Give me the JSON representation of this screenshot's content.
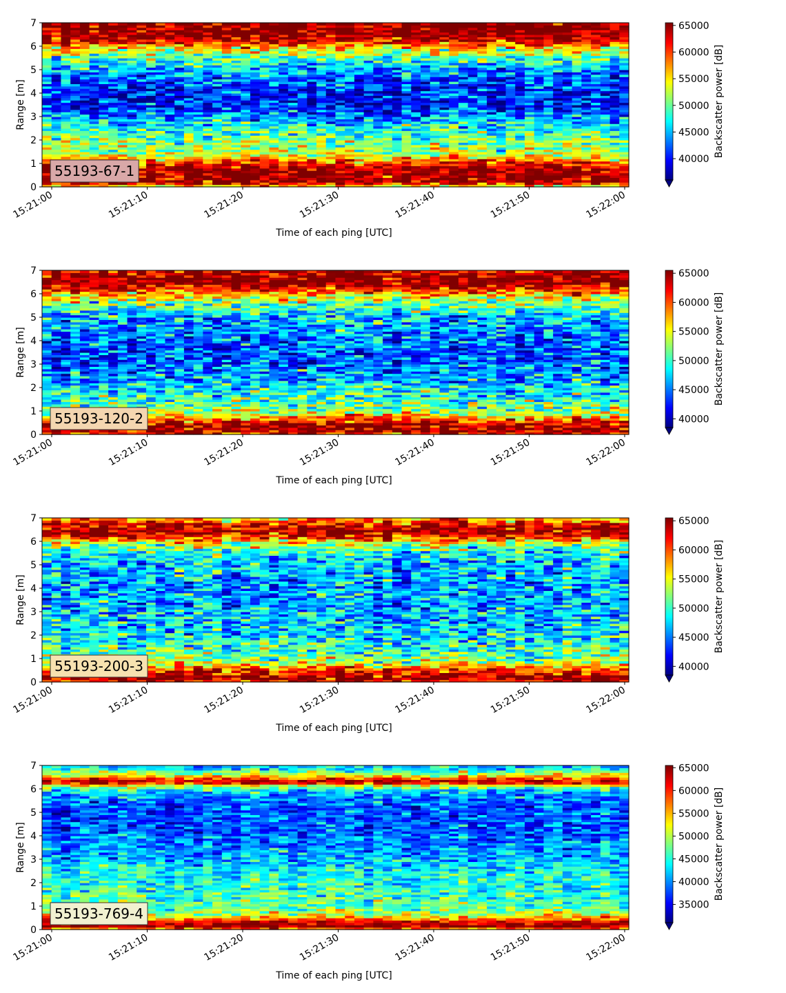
{
  "figure": {
    "xlabel": "Time of each ping [UTC]",
    "ylabel": "Range [m]",
    "cbar_label": "Backscatter power [dB]",
    "x_ticks": [
      "15:21:00",
      "15:21:10",
      "15:21:20",
      "15:21:30",
      "15:21:40",
      "15:21:50",
      "15:22:00"
    ],
    "y_ticks": [
      "0",
      "1",
      "2",
      "3",
      "4",
      "5",
      "6",
      "7"
    ]
  },
  "chart_data": [
    {
      "type": "heatmap",
      "label": "55193-67-1",
      "label_color": "#d9a8a8",
      "x_range": [
        "15:21:00",
        "15:22:00"
      ],
      "ylim": [
        0,
        7
      ],
      "colormap": "jet",
      "colorbar_range": [
        36000,
        65500
      ],
      "colorbar_ticks": [
        40000,
        45000,
        50000,
        55000,
        60000,
        65000
      ],
      "colorbar_ticks_text": [
        "40000",
        "45000",
        "50000",
        "55000",
        "60000",
        "65000"
      ],
      "profile": [
        {
          "r": 0.0,
          "v": 52000
        },
        {
          "r": 0.2,
          "v": 65500
        },
        {
          "r": 0.8,
          "v": 64500
        },
        {
          "r": 1.15,
          "v": 58000
        },
        {
          "r": 1.5,
          "v": 52000
        },
        {
          "r": 2.0,
          "v": 51000
        },
        {
          "r": 2.5,
          "v": 48000
        },
        {
          "r": 3.0,
          "v": 44000
        },
        {
          "r": 3.5,
          "v": 40000
        },
        {
          "r": 4.0,
          "v": 41000
        },
        {
          "r": 4.5,
          "v": 42000
        },
        {
          "r": 5.0,
          "v": 45000
        },
        {
          "r": 5.5,
          "v": 49000
        },
        {
          "r": 5.9,
          "v": 55000
        },
        {
          "r": 6.2,
          "v": 62000
        },
        {
          "r": 6.5,
          "v": 65500
        },
        {
          "r": 7.0,
          "v": 65500
        }
      ],
      "noise": 4500
    },
    {
      "type": "heatmap",
      "label": "55193-120-2",
      "label_color": "#f4d6b0",
      "x_range": [
        "15:21:00",
        "15:22:00"
      ],
      "ylim": [
        0,
        7
      ],
      "colormap": "jet",
      "colorbar_range": [
        38500,
        65500
      ],
      "colorbar_ticks": [
        40000,
        45000,
        50000,
        55000,
        60000,
        65000
      ],
      "colorbar_ticks_text": [
        "40000",
        "45000",
        "50000",
        "55000",
        "60000",
        "65000"
      ],
      "profile": [
        {
          "r": 0.0,
          "v": 60000
        },
        {
          "r": 0.2,
          "v": 65500
        },
        {
          "r": 0.45,
          "v": 64000
        },
        {
          "r": 0.7,
          "v": 58000
        },
        {
          "r": 1.0,
          "v": 53000
        },
        {
          "r": 1.5,
          "v": 50000
        },
        {
          "r": 2.0,
          "v": 48000
        },
        {
          "r": 2.5,
          "v": 46000
        },
        {
          "r": 3.0,
          "v": 45000
        },
        {
          "r": 3.5,
          "v": 44000
        },
        {
          "r": 4.0,
          "v": 45000
        },
        {
          "r": 4.5,
          "v": 46000
        },
        {
          "r": 5.0,
          "v": 47000
        },
        {
          "r": 5.5,
          "v": 51000
        },
        {
          "r": 5.9,
          "v": 56000
        },
        {
          "r": 6.2,
          "v": 62000
        },
        {
          "r": 6.5,
          "v": 65500
        },
        {
          "r": 7.0,
          "v": 64000
        }
      ],
      "noise": 4500
    },
    {
      "type": "heatmap",
      "label": "55193-200-3",
      "label_color": "#f7e2b0",
      "x_range": [
        "15:21:00",
        "15:22:00"
      ],
      "ylim": [
        0,
        7
      ],
      "colormap": "jet",
      "colorbar_range": [
        38500,
        65500
      ],
      "colorbar_ticks": [
        40000,
        45000,
        50000,
        55000,
        60000,
        65000
      ],
      "colorbar_ticks_text": [
        "40000",
        "45000",
        "50000",
        "55000",
        "60000",
        "65000"
      ],
      "profile": [
        {
          "r": 0.0,
          "v": 62000
        },
        {
          "r": 0.2,
          "v": 65500
        },
        {
          "r": 0.45,
          "v": 62000
        },
        {
          "r": 0.75,
          "v": 56000
        },
        {
          "r": 1.0,
          "v": 52000
        },
        {
          "r": 1.5,
          "v": 50000
        },
        {
          "r": 2.0,
          "v": 48500
        },
        {
          "r": 2.5,
          "v": 47500
        },
        {
          "r": 3.0,
          "v": 47000
        },
        {
          "r": 3.5,
          "v": 46500
        },
        {
          "r": 4.0,
          "v": 46500
        },
        {
          "r": 4.5,
          "v": 47000
        },
        {
          "r": 5.0,
          "v": 47500
        },
        {
          "r": 5.5,
          "v": 49000
        },
        {
          "r": 5.9,
          "v": 54000
        },
        {
          "r": 6.2,
          "v": 62000
        },
        {
          "r": 6.5,
          "v": 65500
        },
        {
          "r": 6.75,
          "v": 63000
        },
        {
          "r": 7.0,
          "v": 58000
        }
      ],
      "noise": 4500
    },
    {
      "type": "heatmap",
      "label": "55193-769-4",
      "label_color": "#f1f1d0",
      "x_range": [
        "15:21:00",
        "15:22:00"
      ],
      "ylim": [
        0,
        7
      ],
      "colormap": "jet",
      "colorbar_range": [
        31000,
        65500
      ],
      "colorbar_ticks": [
        35000,
        40000,
        45000,
        50000,
        55000,
        60000,
        65000
      ],
      "colorbar_ticks_text": [
        "35000",
        "40000",
        "45000",
        "50000",
        "55000",
        "60000",
        "65000"
      ],
      "profile": [
        {
          "r": 0.0,
          "v": 54000
        },
        {
          "r": 0.15,
          "v": 65500
        },
        {
          "r": 0.35,
          "v": 62000
        },
        {
          "r": 0.6,
          "v": 52000
        },
        {
          "r": 1.0,
          "v": 47000
        },
        {
          "r": 1.5,
          "v": 46000
        },
        {
          "r": 2.0,
          "v": 45000
        },
        {
          "r": 2.5,
          "v": 44000
        },
        {
          "r": 3.0,
          "v": 42000
        },
        {
          "r": 3.5,
          "v": 40000
        },
        {
          "r": 4.0,
          "v": 39000
        },
        {
          "r": 4.5,
          "v": 38000
        },
        {
          "r": 5.0,
          "v": 38000
        },
        {
          "r": 5.5,
          "v": 39000
        },
        {
          "r": 5.9,
          "v": 42000
        },
        {
          "r": 6.15,
          "v": 52000
        },
        {
          "r": 6.3,
          "v": 65500
        },
        {
          "r": 6.5,
          "v": 56000
        },
        {
          "r": 6.8,
          "v": 45000
        },
        {
          "r": 7.0,
          "v": 42000
        }
      ],
      "noise": 4200
    }
  ]
}
